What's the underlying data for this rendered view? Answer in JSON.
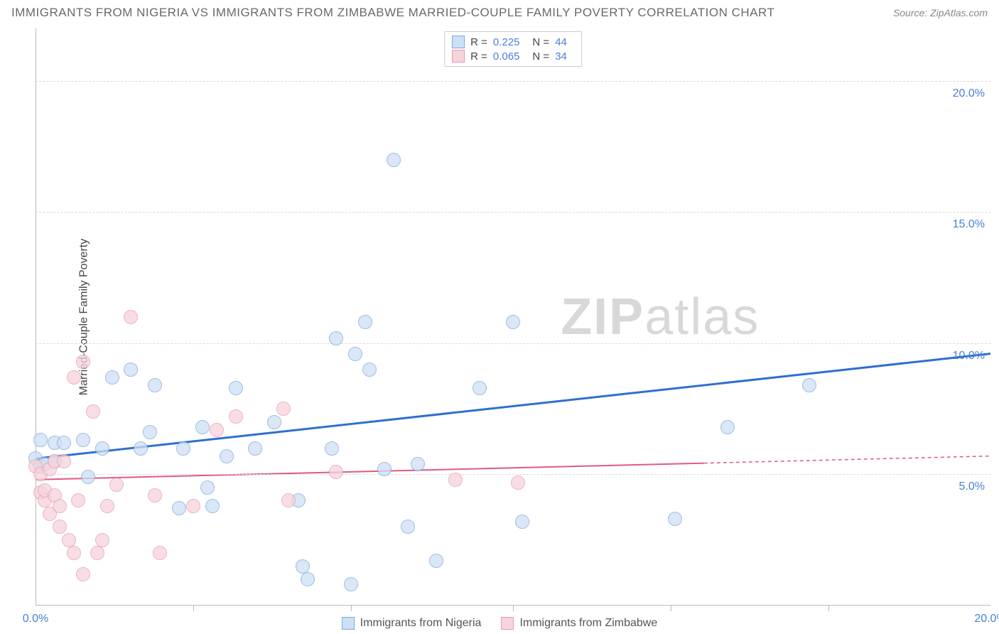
{
  "header": {
    "title": "IMMIGRANTS FROM NIGERIA VS IMMIGRANTS FROM ZIMBABWE MARRIED-COUPLE FAMILY POVERTY CORRELATION CHART",
    "source": "Source: ZipAtlas.com"
  },
  "chart": {
    "type": "scatter",
    "y_axis_label": "Married-Couple Family Poverty",
    "background_color": "#ffffff",
    "grid_color": "#d8d8d8",
    "axis_color": "#bbbbbb",
    "tick_label_color": "#4a7fd8",
    "xlim": [
      0,
      20
    ],
    "ylim": [
      0,
      22
    ],
    "y_ticks": [
      {
        "v": 5,
        "label": "5.0%"
      },
      {
        "v": 10,
        "label": "10.0%"
      },
      {
        "v": 15,
        "label": "15.0%"
      },
      {
        "v": 20,
        "label": "20.0%"
      }
    ],
    "x_tick_labels": [
      {
        "v": 0,
        "label": "0.0%"
      },
      {
        "v": 20,
        "label": "20.0%"
      }
    ],
    "x_minor_ticks": [
      3.3,
      6.6,
      10,
      13.3,
      16.6
    ],
    "marker_radius": 10,
    "series": [
      {
        "name": "Immigrants from Nigeria",
        "fill": "#cde0f5",
        "stroke": "#7fa8d8",
        "fill_opacity": 0.75,
        "trend": {
          "color": "#2f6fd0",
          "width": 3,
          "y_start": 5.6,
          "y_at_max_x": 9.6,
          "data_x_max": 20
        },
        "points": [
          [
            0.0,
            5.6
          ],
          [
            0.1,
            6.3
          ],
          [
            0.1,
            5.3
          ],
          [
            0.2,
            5.4
          ],
          [
            0.4,
            6.2
          ],
          [
            0.4,
            5.5
          ],
          [
            0.6,
            6.2
          ],
          [
            1.0,
            6.3
          ],
          [
            1.1,
            4.9
          ],
          [
            1.4,
            6.0
          ],
          [
            1.6,
            8.7
          ],
          [
            2.0,
            9.0
          ],
          [
            2.2,
            6.0
          ],
          [
            2.4,
            6.6
          ],
          [
            2.5,
            8.4
          ],
          [
            3.0,
            3.7
          ],
          [
            3.1,
            6.0
          ],
          [
            3.5,
            6.8
          ],
          [
            3.6,
            4.5
          ],
          [
            3.7,
            3.8
          ],
          [
            4.0,
            5.7
          ],
          [
            4.2,
            8.3
          ],
          [
            4.6,
            6.0
          ],
          [
            5.0,
            7.0
          ],
          [
            5.5,
            4.0
          ],
          [
            5.6,
            1.5
          ],
          [
            5.7,
            1.0
          ],
          [
            6.2,
            6.0
          ],
          [
            6.3,
            10.2
          ],
          [
            6.6,
            0.8
          ],
          [
            6.7,
            9.6
          ],
          [
            6.9,
            10.8
          ],
          [
            7.0,
            9.0
          ],
          [
            7.3,
            5.2
          ],
          [
            7.5,
            17.0
          ],
          [
            7.8,
            3.0
          ],
          [
            8.0,
            5.4
          ],
          [
            8.4,
            1.7
          ],
          [
            9.3,
            8.3
          ],
          [
            10.0,
            10.8
          ],
          [
            10.2,
            3.2
          ],
          [
            13.4,
            3.3
          ],
          [
            14.5,
            6.8
          ],
          [
            16.2,
            8.4
          ]
        ]
      },
      {
        "name": "Immigrants from Zimbabwe",
        "fill": "#f6d4dc",
        "stroke": "#e89ab0",
        "fill_opacity": 0.75,
        "trend": {
          "color": "#e05a80",
          "width": 2,
          "y_start": 4.8,
          "y_at_max_x": 5.7,
          "data_x_max": 14
        },
        "points": [
          [
            0.0,
            5.3
          ],
          [
            0.1,
            5.0
          ],
          [
            0.1,
            4.3
          ],
          [
            0.2,
            4.0
          ],
          [
            0.2,
            4.4
          ],
          [
            0.3,
            3.5
          ],
          [
            0.3,
            5.2
          ],
          [
            0.4,
            5.5
          ],
          [
            0.4,
            4.2
          ],
          [
            0.5,
            3.0
          ],
          [
            0.5,
            3.8
          ],
          [
            0.6,
            5.5
          ],
          [
            0.7,
            2.5
          ],
          [
            0.8,
            8.7
          ],
          [
            0.8,
            2.0
          ],
          [
            0.9,
            4.0
          ],
          [
            1.0,
            9.3
          ],
          [
            1.0,
            1.2
          ],
          [
            1.2,
            7.4
          ],
          [
            1.3,
            2.0
          ],
          [
            1.4,
            2.5
          ],
          [
            1.5,
            3.8
          ],
          [
            1.7,
            4.6
          ],
          [
            2.0,
            11.0
          ],
          [
            2.5,
            4.2
          ],
          [
            2.6,
            2.0
          ],
          [
            3.3,
            3.8
          ],
          [
            3.8,
            6.7
          ],
          [
            4.2,
            7.2
          ],
          [
            5.2,
            7.5
          ],
          [
            5.3,
            4.0
          ],
          [
            6.3,
            5.1
          ],
          [
            8.8,
            4.8
          ],
          [
            10.1,
            4.7
          ]
        ]
      }
    ],
    "legend_top": {
      "rows": [
        {
          "swatch_fill": "#cde0f5",
          "swatch_stroke": "#7fa8d8",
          "r_label": "R =",
          "r_value": "0.225",
          "n_label": "N =",
          "n_value": "44"
        },
        {
          "swatch_fill": "#f6d4dc",
          "swatch_stroke": "#e89ab0",
          "r_label": "R =",
          "r_value": "0.065",
          "n_label": "N =",
          "n_value": "34"
        }
      ]
    },
    "legend_bottom": [
      {
        "swatch_fill": "#cde0f5",
        "swatch_stroke": "#7fa8d8",
        "label": "Immigrants from Nigeria"
      },
      {
        "swatch_fill": "#f6d4dc",
        "swatch_stroke": "#e89ab0",
        "label": "Immigrants from Zimbabwe"
      }
    ],
    "watermark": {
      "prefix": "ZIP",
      "suffix": "atlas",
      "color": "#d8d8d8",
      "fontsize": 72
    }
  }
}
